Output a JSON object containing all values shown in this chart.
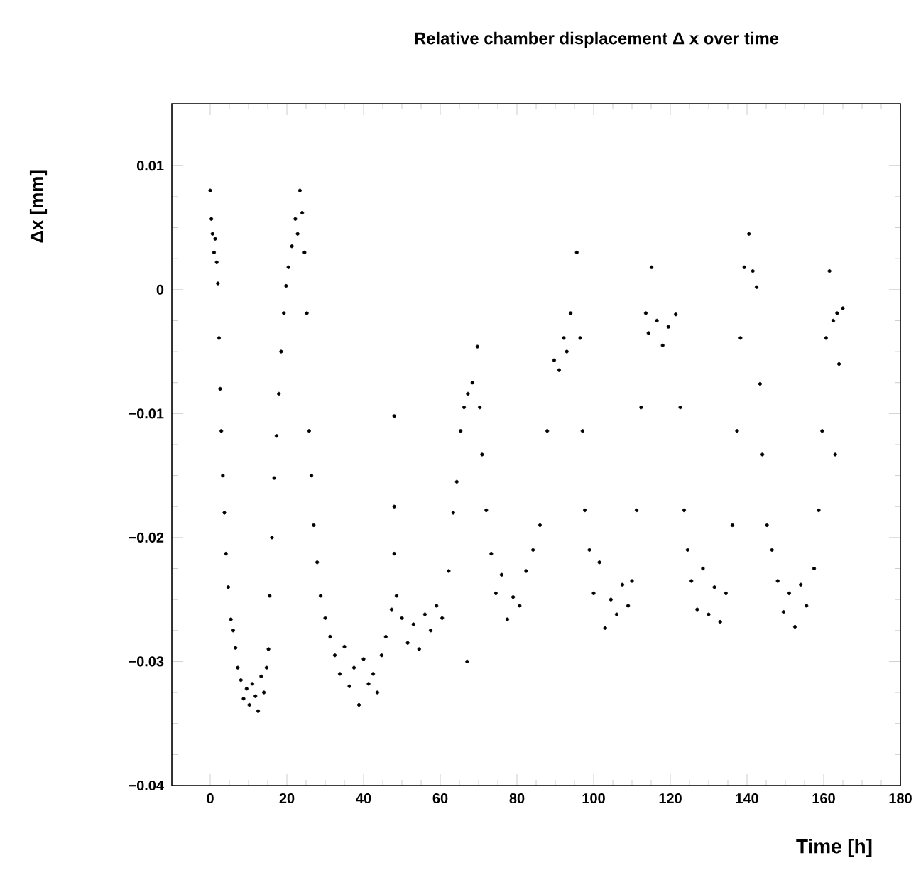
{
  "chart_data": {
    "type": "scatter",
    "title": "Relative chamber displacement   Δ x over time",
    "xlabel": "Time [h]",
    "ylabel": "Δx [mm]",
    "xlim": [
      -10,
      180
    ],
    "ylim": [
      -0.04,
      0.015
    ],
    "xticks": [
      0,
      20,
      40,
      60,
      80,
      100,
      120,
      140,
      160,
      180
    ],
    "yticks": [
      {
        "value": -0.04,
        "label": "−0.04"
      },
      {
        "value": -0.03,
        "label": "−0.03"
      },
      {
        "value": -0.02,
        "label": "−0.02"
      },
      {
        "value": -0.01,
        "label": "−0.01"
      },
      0,
      0.01
    ],
    "marker": "circle",
    "grid": false,
    "series": [
      {
        "color": "#000000",
        "x": [
          0,
          0.3,
          0.6,
          1,
          1.3,
          1.7,
          2,
          2.3,
          2.6,
          2.9,
          3.3,
          3.7,
          4.1,
          4.7,
          5.4,
          6,
          6.6,
          7.2,
          8,
          8.7,
          9.5,
          10.2,
          11,
          11.8,
          12.5,
          13.3,
          14,
          14.7,
          15.2,
          15.5,
          16.1,
          16.7,
          17.3,
          17.9,
          18.5,
          19.2,
          19.8,
          20.4,
          21.3,
          22.2,
          22.8,
          23.4,
          24,
          24.6,
          25.2,
          25.8,
          26.4,
          27,
          27.9,
          28.8,
          30,
          31.3,
          32.5,
          33.8,
          35,
          36.3,
          37.5,
          38.8,
          40,
          41.3,
          42.5,
          43.6,
          44.7,
          45.8,
          47.3,
          48,
          48,
          48,
          48.6,
          50,
          51.5,
          53,
          54.5,
          56,
          57.5,
          59,
          60.5,
          62.2,
          63.4,
          64.3,
          65.3,
          66.2,
          67,
          67.2,
          68.4,
          69.7,
          70.3,
          70.9,
          72,
          73.3,
          74.5,
          76,
          77.5,
          79,
          80.7,
          82.4,
          84.2,
          86,
          87.9,
          89.7,
          91,
          92.2,
          93,
          94,
          95.6,
          96.5,
          97.1,
          97.7,
          98.9,
          100,
          101.5,
          103,
          104.5,
          106,
          107.5,
          109,
          110,
          111.2,
          112.4,
          113.6,
          114.3,
          115.1,
          116.5,
          118,
          119.5,
          121.4,
          122.6,
          123.6,
          124.5,
          125.5,
          127,
          128.5,
          130,
          131.5,
          133,
          134.5,
          136.2,
          137.4,
          138.3,
          139.3,
          140.5,
          141.5,
          142.5,
          143.4,
          144,
          145.2,
          146.5,
          148,
          149.5,
          151,
          152.5,
          154,
          155.5,
          157.5,
          158.7,
          159.6,
          160.6,
          161.5,
          162.5,
          163,
          163.5,
          164,
          165
        ],
        "values": [
          0.008,
          0.0057,
          0.0045,
          0.003,
          0.0041,
          0.0022,
          0.0005,
          -0.0039,
          -0.008,
          -0.0114,
          -0.015,
          -0.018,
          -0.0213,
          -0.024,
          -0.0266,
          -0.0275,
          -0.0289,
          -0.0305,
          -0.0315,
          -0.033,
          -0.0322,
          -0.0335,
          -0.0318,
          -0.0328,
          -0.034,
          -0.0312,
          -0.0325,
          -0.0305,
          -0.029,
          -0.0247,
          -0.02,
          -0.0152,
          -0.0118,
          -0.0084,
          -0.005,
          -0.0019,
          0.0003,
          0.0018,
          0.0035,
          0.0057,
          0.0045,
          0.008,
          0.0062,
          0.003,
          -0.0019,
          -0.0114,
          -0.015,
          -0.019,
          -0.022,
          -0.0247,
          -0.0265,
          -0.028,
          -0.0295,
          -0.031,
          -0.0288,
          -0.032,
          -0.0305,
          -0.0335,
          -0.0298,
          -0.0318,
          -0.031,
          -0.0325,
          -0.0295,
          -0.028,
          -0.0258,
          -0.0213,
          -0.0102,
          -0.0175,
          -0.0247,
          -0.0265,
          -0.0285,
          -0.027,
          -0.029,
          -0.0262,
          -0.0275,
          -0.0255,
          -0.0265,
          -0.0227,
          -0.018,
          -0.0155,
          -0.0114,
          -0.0095,
          -0.03,
          -0.0084,
          -0.0075,
          -0.0046,
          -0.0095,
          -0.0133,
          -0.0178,
          -0.0213,
          -0.0245,
          -0.023,
          -0.0266,
          -0.0248,
          -0.0255,
          -0.0227,
          -0.021,
          -0.019,
          -0.0114,
          -0.0057,
          -0.0065,
          -0.0039,
          -0.005,
          -0.0019,
          0.003,
          -0.0039,
          -0.0114,
          -0.0178,
          -0.021,
          -0.0245,
          -0.022,
          -0.0273,
          -0.025,
          -0.0262,
          -0.0238,
          -0.0255,
          -0.0235,
          -0.0178,
          -0.0095,
          -0.0019,
          -0.0035,
          0.0018,
          -0.0025,
          -0.0045,
          -0.003,
          -0.002,
          -0.0095,
          -0.0178,
          -0.021,
          -0.0235,
          -0.0258,
          -0.0225,
          -0.0262,
          -0.024,
          -0.0268,
          -0.0245,
          -0.019,
          -0.0114,
          -0.0039,
          0.0018,
          0.0045,
          0.0015,
          0.0002,
          -0.0076,
          -0.0133,
          -0.019,
          -0.021,
          -0.0235,
          -0.026,
          -0.0245,
          -0.0272,
          -0.0238,
          -0.0255,
          -0.0225,
          -0.0178,
          -0.0114,
          -0.0039,
          0.0015,
          -0.0025,
          -0.0133,
          -0.0019,
          -0.006,
          -0.0015
        ]
      }
    ]
  }
}
